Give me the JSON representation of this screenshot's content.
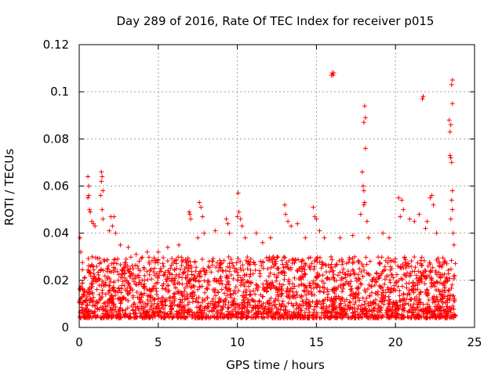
{
  "colors": {
    "marker": "#ff0000",
    "grid": "#a0a0a0",
    "axis": "#000000"
  },
  "chart_data": {
    "type": "scatter",
    "title": "Day 289 of 2016, Rate Of TEC Index for receiver p015",
    "xlabel": "GPS time / hours",
    "ylabel": "ROTI / TECUs",
    "xlim": [
      0,
      25
    ],
    "ylim": [
      0,
      0.12
    ],
    "grid": true,
    "marker": "+",
    "x_ticks": [
      0,
      5,
      10,
      15,
      20,
      25
    ],
    "x_tick_labels": [
      "0",
      "5",
      "10",
      "15",
      "20",
      "25"
    ],
    "y_ticks": [
      0,
      0.02,
      0.04,
      0.06,
      0.08,
      0.1,
      0.12
    ],
    "y_tick_labels": [
      "0",
      "0.02",
      "0.04",
      "0.06",
      "0.08",
      "0.1",
      "0.12"
    ],
    "series": [
      {
        "name": "ROTI",
        "x_range": [
          0,
          23.8
        ],
        "typical_range": [
          0.004,
          0.03
        ],
        "points": [
          [
            0.05,
            0.038
          ],
          [
            0.1,
            0.032
          ],
          [
            0.55,
            0.064
          ],
          [
            0.6,
            0.06
          ],
          [
            0.6,
            0.056
          ],
          [
            0.55,
            0.055
          ],
          [
            0.65,
            0.05
          ],
          [
            0.7,
            0.049
          ],
          [
            0.8,
            0.045
          ],
          [
            0.9,
            0.044
          ],
          [
            1.0,
            0.043
          ],
          [
            1.4,
            0.066
          ],
          [
            1.45,
            0.064
          ],
          [
            1.4,
            0.062
          ],
          [
            1.5,
            0.058
          ],
          [
            1.35,
            0.056
          ],
          [
            1.45,
            0.05
          ],
          [
            1.5,
            0.046
          ],
          [
            2.0,
            0.047
          ],
          [
            2.2,
            0.047
          ],
          [
            2.1,
            0.043
          ],
          [
            1.9,
            0.041
          ],
          [
            2.3,
            0.04
          ],
          [
            2.6,
            0.035
          ],
          [
            3.1,
            0.034
          ],
          [
            3.6,
            0.031
          ],
          [
            4.3,
            0.032
          ],
          [
            5.0,
            0.032
          ],
          [
            5.6,
            0.034
          ],
          [
            6.3,
            0.035
          ],
          [
            6.95,
            0.049
          ],
          [
            7.0,
            0.048
          ],
          [
            7.05,
            0.046
          ],
          [
            7.6,
            0.053
          ],
          [
            7.7,
            0.051
          ],
          [
            7.8,
            0.047
          ],
          [
            7.9,
            0.04
          ],
          [
            7.5,
            0.038
          ],
          [
            8.6,
            0.041
          ],
          [
            9.3,
            0.046
          ],
          [
            9.4,
            0.044
          ],
          [
            9.5,
            0.04
          ],
          [
            10.05,
            0.057
          ],
          [
            10.1,
            0.049
          ],
          [
            10.2,
            0.046
          ],
          [
            10.0,
            0.047
          ],
          [
            10.3,
            0.043
          ],
          [
            10.5,
            0.038
          ],
          [
            11.2,
            0.04
          ],
          [
            11.6,
            0.036
          ],
          [
            12.1,
            0.038
          ],
          [
            13.0,
            0.052
          ],
          [
            13.05,
            0.048
          ],
          [
            13.2,
            0.045
          ],
          [
            13.4,
            0.043
          ],
          [
            13.8,
            0.044
          ],
          [
            14.3,
            0.038
          ],
          [
            14.8,
            0.051
          ],
          [
            14.9,
            0.047
          ],
          [
            15.0,
            0.046
          ],
          [
            15.2,
            0.041
          ],
          [
            15.5,
            0.038
          ],
          [
            16.0,
            0.108
          ],
          [
            16.05,
            0.107
          ],
          [
            16.1,
            0.108
          ],
          [
            15.95,
            0.107
          ],
          [
            16.5,
            0.038
          ],
          [
            17.3,
            0.039
          ],
          [
            17.9,
            0.066
          ],
          [
            17.95,
            0.06
          ],
          [
            18.0,
            0.052
          ],
          [
            18.05,
            0.094
          ],
          [
            18.1,
            0.089
          ],
          [
            18.0,
            0.087
          ],
          [
            18.1,
            0.076
          ],
          [
            18.0,
            0.058
          ],
          [
            18.05,
            0.053
          ],
          [
            17.8,
            0.048
          ],
          [
            18.2,
            0.045
          ],
          [
            18.3,
            0.038
          ],
          [
            19.2,
            0.04
          ],
          [
            19.6,
            0.038
          ],
          [
            20.2,
            0.055
          ],
          [
            20.4,
            0.054
          ],
          [
            20.5,
            0.05
          ],
          [
            20.3,
            0.047
          ],
          [
            20.9,
            0.046
          ],
          [
            21.2,
            0.045
          ],
          [
            21.5,
            0.048
          ],
          [
            21.7,
            0.097
          ],
          [
            21.75,
            0.098
          ],
          [
            21.9,
            0.042
          ],
          [
            22.2,
            0.055
          ],
          [
            22.3,
            0.056
          ],
          [
            22.4,
            0.052
          ],
          [
            22.0,
            0.045
          ],
          [
            22.6,
            0.04
          ],
          [
            23.4,
            0.088
          ],
          [
            23.5,
            0.086
          ],
          [
            23.45,
            0.083
          ],
          [
            23.5,
            0.072
          ],
          [
            23.45,
            0.073
          ],
          [
            23.55,
            0.07
          ],
          [
            23.6,
            0.105
          ],
          [
            23.55,
            0.103
          ],
          [
            23.6,
            0.095
          ],
          [
            23.6,
            0.058
          ],
          [
            23.55,
            0.054
          ],
          [
            23.6,
            0.05
          ],
          [
            23.5,
            0.046
          ],
          [
            23.65,
            0.04
          ],
          [
            23.7,
            0.035
          ]
        ]
      }
    ]
  }
}
